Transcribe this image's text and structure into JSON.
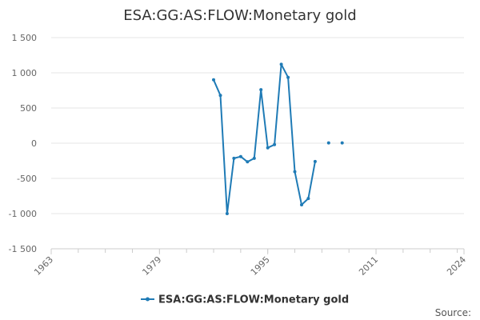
{
  "chart_data": {
    "type": "line",
    "title": "ESA:GG:AS:FLOW:Monetary gold",
    "xlabel": "",
    "ylabel": "",
    "xlim": [
      1963,
      2024
    ],
    "ylim": [
      -1500,
      1500
    ],
    "x_ticks": [
      1963,
      1979,
      1995,
      2011,
      2024
    ],
    "x_tick_labels": [
      "1963",
      "1979",
      "1995",
      "2011",
      "2024"
    ],
    "y_ticks": [
      -1500,
      -1000,
      -500,
      0,
      500,
      1000,
      1500
    ],
    "y_tick_labels": [
      "-1 500",
      "-1 000",
      "-500",
      "0",
      "500",
      "1 000",
      "1 500"
    ],
    "grid": "horizontal",
    "legend_position": "bottom",
    "series": [
      {
        "name": "ESA:GG:AS:FLOW:Monetary gold",
        "color": "#1f7bb6",
        "points": [
          {
            "x": 1987,
            "y": 900
          },
          {
            "x": 1988,
            "y": 680
          },
          {
            "x": 1989,
            "y": -1000
          },
          {
            "x": 1990,
            "y": -215
          },
          {
            "x": 1991,
            "y": -190
          },
          {
            "x": 1992,
            "y": -265
          },
          {
            "x": 1993,
            "y": -215
          },
          {
            "x": 1994,
            "y": 760
          },
          {
            "x": 1995,
            "y": -65
          },
          {
            "x": 1996,
            "y": -20
          },
          {
            "x": 1997,
            "y": 1120
          },
          {
            "x": 1998,
            "y": 935
          },
          {
            "x": 1999,
            "y": -405
          },
          {
            "x": 2000,
            "y": -875
          },
          {
            "x": 2001,
            "y": -785
          },
          {
            "x": 2002,
            "y": -260
          },
          {
            "x": 2004,
            "y": 5
          },
          {
            "x": 2006,
            "y": 5
          }
        ]
      }
    ],
    "source_label": "Source:"
  }
}
